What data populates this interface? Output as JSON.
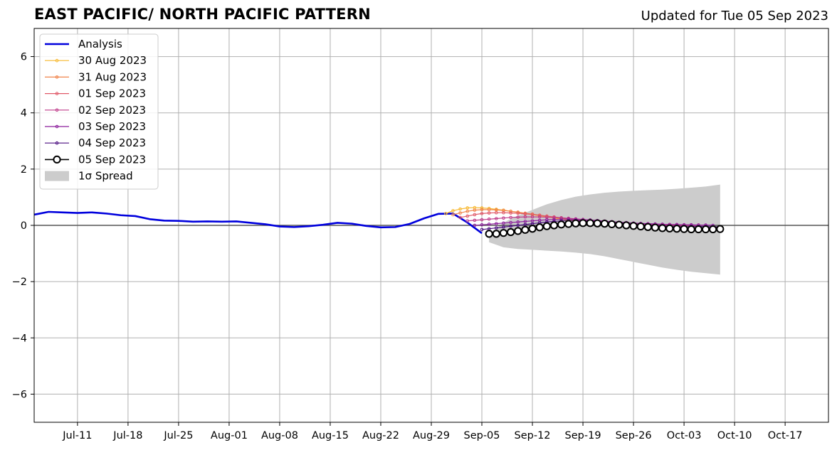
{
  "header": {
    "title": "EAST PACIFIC/ NORTH PACIFIC PATTERN",
    "updated": "Updated for Tue 05 Sep 2023"
  },
  "chart_data": {
    "type": "line",
    "title": "EAST PACIFIC/ NORTH PACIFIC PATTERN",
    "xlabel": "",
    "ylabel": "",
    "xlim": [
      "2023-07-05",
      "2023-10-23"
    ],
    "ylim": [
      -7,
      7
    ],
    "x_tick_dates": [
      "2023-07-11",
      "2023-07-18",
      "2023-07-25",
      "2023-08-01",
      "2023-08-08",
      "2023-08-15",
      "2023-08-22",
      "2023-08-29",
      "2023-09-05",
      "2023-09-12",
      "2023-09-19",
      "2023-09-26",
      "2023-10-03",
      "2023-10-10",
      "2023-10-17"
    ],
    "x_tick_labels": [
      "Jul-11",
      "Jul-18",
      "Jul-25",
      "Aug-01",
      "Aug-08",
      "Aug-15",
      "Aug-22",
      "Aug-29",
      "Sep-05",
      "Sep-12",
      "Sep-19",
      "Sep-26",
      "Oct-03",
      "Oct-10",
      "Oct-17"
    ],
    "y_ticks": [
      -6,
      -4,
      -2,
      0,
      2,
      4,
      6
    ],
    "y_tick_labels": [
      "−6",
      "−4",
      "−2",
      "0",
      "2",
      "4",
      "6"
    ],
    "grid": true,
    "legend": {
      "position": "top-left",
      "entries": [
        "Analysis",
        "30 Aug 2023",
        "31 Aug 2023",
        "01 Sep 2023",
        "02 Sep 2023",
        "03 Sep 2023",
        "04 Sep 2023",
        "05 Sep 2023",
        "1σ Spread"
      ]
    },
    "analysis": {
      "name": "Analysis",
      "color": "#0000dd",
      "x": [
        "2023-07-05",
        "2023-07-07",
        "2023-07-09",
        "2023-07-11",
        "2023-07-13",
        "2023-07-15",
        "2023-07-17",
        "2023-07-19",
        "2023-07-21",
        "2023-07-23",
        "2023-07-25",
        "2023-07-27",
        "2023-07-29",
        "2023-07-31",
        "2023-08-02",
        "2023-08-04",
        "2023-08-06",
        "2023-08-08",
        "2023-08-10",
        "2023-08-12",
        "2023-08-14",
        "2023-08-16",
        "2023-08-18",
        "2023-08-20",
        "2023-08-22",
        "2023-08-24",
        "2023-08-26",
        "2023-08-28",
        "2023-08-30",
        "2023-09-01",
        "2023-09-03",
        "2023-09-05"
      ],
      "y": [
        0.38,
        0.48,
        0.46,
        0.44,
        0.46,
        0.42,
        0.36,
        0.33,
        0.22,
        0.17,
        0.16,
        0.13,
        0.14,
        0.13,
        0.14,
        0.09,
        0.04,
        -0.04,
        -0.06,
        -0.03,
        0.02,
        0.09,
        0.06,
        -0.02,
        -0.07,
        -0.06,
        0.05,
        0.25,
        0.41,
        0.42,
        0.1,
        -0.28
      ]
    },
    "forecasts": [
      {
        "name": "30 Aug 2023",
        "color": "#f7b82e",
        "start": "2023-08-31",
        "y": [
          0.42,
          0.52,
          0.58,
          0.62,
          0.63,
          0.62,
          0.6,
          0.57,
          0.54,
          0.5,
          0.46,
          0.42,
          0.38,
          0.34,
          0.3,
          0.26,
          0.22,
          0.19,
          0.16,
          0.13,
          0.11,
          0.09,
          0.07,
          0.05,
          0.04,
          0.03,
          0.02,
          0.02,
          0.01,
          0.01,
          0.0,
          0.0,
          0.0,
          0.0
        ]
      },
      {
        "name": "31 Aug 2023",
        "color": "#f0834a",
        "start": "2023-09-01",
        "y": [
          0.38,
          0.44,
          0.5,
          0.54,
          0.56,
          0.56,
          0.55,
          0.53,
          0.5,
          0.47,
          0.43,
          0.4,
          0.36,
          0.32,
          0.28,
          0.25,
          0.21,
          0.18,
          0.15,
          0.13,
          0.1,
          0.08,
          0.06,
          0.05,
          0.04,
          0.03,
          0.02,
          0.02,
          0.01,
          0.01,
          0.0,
          0.0,
          0.0,
          0.0
        ]
      },
      {
        "name": "01 Sep 2023",
        "color": "#e05868",
        "start": "2023-09-02",
        "y": [
          0.28,
          0.33,
          0.38,
          0.42,
          0.44,
          0.45,
          0.45,
          0.44,
          0.43,
          0.41,
          0.39,
          0.36,
          0.33,
          0.3,
          0.27,
          0.24,
          0.21,
          0.18,
          0.16,
          0.13,
          0.11,
          0.09,
          0.07,
          0.06,
          0.05,
          0.04,
          0.03,
          0.02,
          0.02,
          0.01,
          0.01,
          0.0,
          0.0,
          0.0
        ]
      },
      {
        "name": "02 Sep 2023",
        "color": "#bf3b8a",
        "start": "2023-09-03",
        "y": [
          0.16,
          0.18,
          0.2,
          0.22,
          0.24,
          0.26,
          0.28,
          0.29,
          0.3,
          0.3,
          0.3,
          0.29,
          0.28,
          0.27,
          0.25,
          0.23,
          0.21,
          0.19,
          0.17,
          0.15,
          0.13,
          0.11,
          0.09,
          0.08,
          0.06,
          0.05,
          0.04,
          0.03,
          0.03,
          0.02,
          0.02,
          0.01,
          0.01,
          0.0
        ]
      },
      {
        "name": "03 Sep 2023",
        "color": "#8c1f9c",
        "start": "2023-09-04",
        "y": [
          0.0,
          0.02,
          0.04,
          0.06,
          0.08,
          0.1,
          0.12,
          0.14,
          0.16,
          0.18,
          0.2,
          0.21,
          0.22,
          0.22,
          0.21,
          0.2,
          0.19,
          0.17,
          0.15,
          0.13,
          0.11,
          0.1,
          0.08,
          0.07,
          0.06,
          0.05,
          0.04,
          0.03,
          0.03,
          0.02,
          0.02,
          0.01,
          0.01,
          0.0
        ]
      },
      {
        "name": "04 Sep 2023",
        "color": "#4b0e80",
        "start": "2023-09-05",
        "y": [
          -0.15,
          -0.12,
          -0.09,
          -0.06,
          -0.03,
          0.0,
          0.03,
          0.06,
          0.09,
          0.12,
          0.14,
          0.16,
          0.17,
          0.17,
          0.16,
          0.15,
          0.13,
          0.11,
          0.09,
          0.07,
          0.05,
          0.04,
          0.02,
          0.01,
          0.0,
          -0.01,
          -0.02,
          -0.02,
          -0.03,
          -0.03,
          -0.04,
          -0.04,
          -0.05,
          -0.05
        ]
      },
      {
        "name": "05 Sep 2023",
        "color": "#000000",
        "start": "2023-09-06",
        "y": [
          -0.3,
          -0.3,
          -0.27,
          -0.24,
          -0.2,
          -0.16,
          -0.12,
          -0.07,
          -0.03,
          0.0,
          0.03,
          0.05,
          0.07,
          0.08,
          0.08,
          0.07,
          0.06,
          0.04,
          0.02,
          0.0,
          -0.02,
          -0.04,
          -0.06,
          -0.08,
          -0.1,
          -0.11,
          -0.12,
          -0.13,
          -0.14,
          -0.14,
          -0.14,
          -0.14,
          -0.13
        ]
      }
    ],
    "spread": {
      "name": "1σ Spread",
      "color": "#cccccc",
      "x": [
        "2023-09-06",
        "2023-09-08",
        "2023-09-10",
        "2023-09-12",
        "2023-09-14",
        "2023-09-16",
        "2023-09-18",
        "2023-09-20",
        "2023-09-22",
        "2023-09-24",
        "2023-09-26",
        "2023-09-28",
        "2023-09-30",
        "2023-10-02",
        "2023-10-04",
        "2023-10-06",
        "2023-10-08"
      ],
      "upper": [
        -0.3,
        0.1,
        0.35,
        0.55,
        0.75,
        0.9,
        1.02,
        1.1,
        1.16,
        1.2,
        1.23,
        1.25,
        1.27,
        1.3,
        1.34,
        1.38,
        1.45
      ],
      "lower": [
        -0.6,
        -0.78,
        -0.84,
        -0.87,
        -0.9,
        -0.93,
        -0.97,
        -1.02,
        -1.1,
        -1.2,
        -1.3,
        -1.4,
        -1.5,
        -1.58,
        -1.65,
        -1.7,
        -1.75
      ]
    }
  }
}
